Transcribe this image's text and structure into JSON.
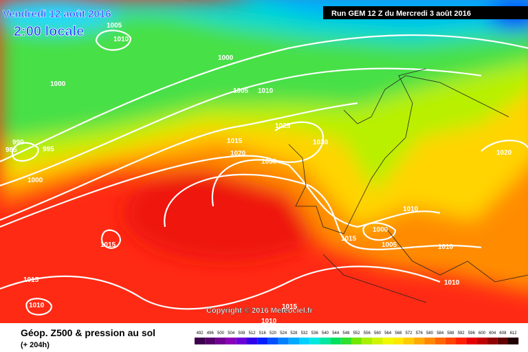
{
  "header": {
    "title": "Vendredi 12 août 2016",
    "time": "2:00 locale",
    "run": "Run GEM 12 Z du Mercredi 3 août 2016"
  },
  "isobar_labels": [
    1005,
    1010,
    1000,
    1000,
    1005,
    1010,
    1025,
    990,
    995,
    985,
    1015,
    1020,
    1030,
    1030,
    1020,
    1000,
    1010,
    1000,
    1015,
    1005,
    1010,
    1015,
    1010,
    1015,
    1010,
    1015,
    1010
  ],
  "copyright": "Copyright © 2016 Meteociel.fr",
  "footer": {
    "title": "Géop. Z500 & pression au sol",
    "lead": "(+ 204h)",
    "scale": [
      492,
      496,
      500,
      504,
      508,
      512,
      516,
      520,
      524,
      528,
      532,
      536,
      540,
      544,
      548,
      552,
      556,
      560,
      564,
      568,
      572,
      576,
      580,
      584,
      588,
      592,
      596,
      600,
      604,
      608,
      612
    ]
  }
}
